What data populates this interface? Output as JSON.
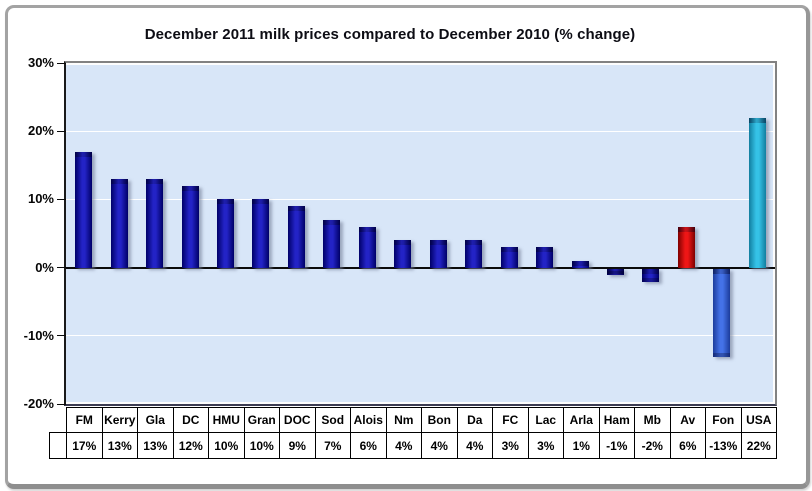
{
  "window": {
    "background_color": "#ffffff",
    "frame_border_color": "#a3a3a3"
  },
  "chart_data": {
    "type": "bar",
    "title": "December 2011 milk prices compared to December 2010 (% change)",
    "categories": [
      "FM",
      "Kerry",
      "Gla",
      "DC",
      "HMU",
      "Gran",
      "DOC",
      "Sod",
      "Alois",
      "Nm",
      "Bon",
      "Da",
      "FC",
      "Lac",
      "Arla",
      "Ham",
      "Mb",
      "Av",
      "Fon",
      "USA"
    ],
    "values": [
      17,
      13,
      13,
      12,
      10,
      10,
      9,
      7,
      6,
      4,
      4,
      4,
      3,
      3,
      1,
      -1,
      -2,
      6,
      -13,
      22
    ],
    "value_labels": [
      "17%",
      "13%",
      "13%",
      "12%",
      "10%",
      "10%",
      "9%",
      "7%",
      "6%",
      "4%",
      "4%",
      "4%",
      "3%",
      "3%",
      "1%",
      "-1%",
      "-2%",
      "6%",
      "-13%",
      "22%"
    ],
    "xlabel": "",
    "ylabel": "",
    "ylim": [
      -20,
      30
    ],
    "ytick_values": [
      30,
      20,
      10,
      0,
      -10,
      -20
    ],
    "ytick_labels": [
      "30%",
      "20%",
      "10%",
      "0%",
      "-10%",
      "-20%"
    ],
    "gridline_values": [
      20,
      10,
      -10
    ],
    "grid": true,
    "legend_position": "none",
    "data_table_shown": true,
    "bar_color_keys": [
      "default",
      "default",
      "default",
      "default",
      "default",
      "default",
      "default",
      "default",
      "default",
      "default",
      "default",
      "default",
      "default",
      "default",
      "default",
      "default",
      "default",
      "av",
      "fon",
      "usa"
    ],
    "colors": {
      "bar_default": "#2323c6",
      "bar_default_edge": "#000068",
      "bar_av": "#ee1616",
      "bar_av_edge": "#7e0000",
      "bar_fon": "#4472e8",
      "bar_fon_edge": "#1c3c9c",
      "bar_usa": "#35c2e6",
      "bar_usa_edge": "#117e9f",
      "plot_background": "#d8e6f8",
      "gridline": "#ffffff",
      "zero_line": "#0a0a0a",
      "axis_text": "#050505",
      "title_text": "#0d0d14"
    }
  }
}
